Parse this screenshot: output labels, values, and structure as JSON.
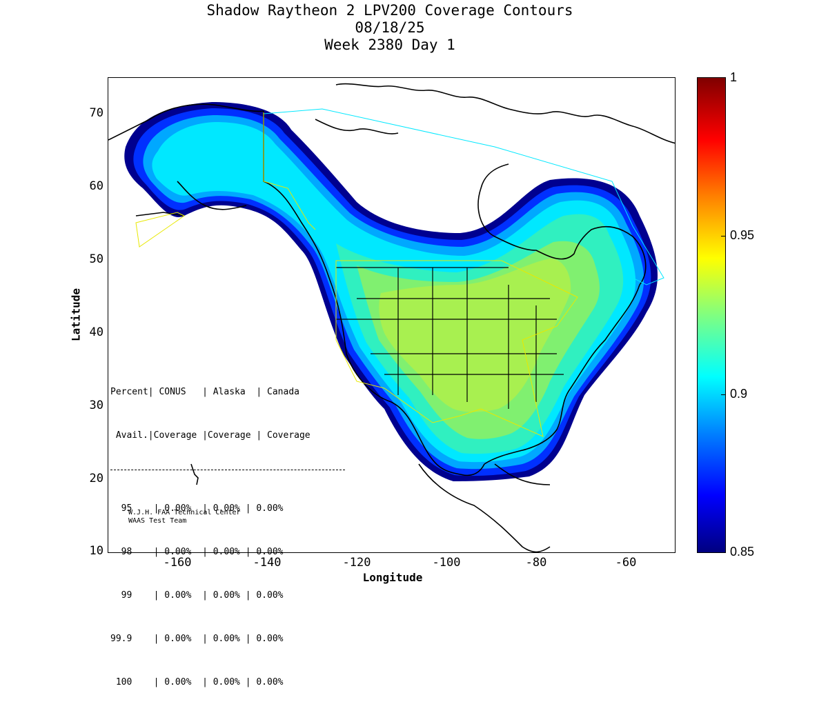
{
  "title": {
    "line1": "Shadow Raytheon 2 LPV200 Coverage Contours",
    "line2": "08/18/25",
    "line3": "Week 2380 Day 1"
  },
  "axes": {
    "xlabel": "Longitude",
    "ylabel": "Latitude",
    "xticks": [
      "-160",
      "-140",
      "-120",
      "-100",
      "-80",
      "-60"
    ],
    "yticks": [
      "10",
      "20",
      "30",
      "40",
      "50",
      "60",
      "70"
    ]
  },
  "colorbar": {
    "ticks": [
      "1",
      "0.95",
      "0.9",
      "0.85"
    ]
  },
  "stats_table": {
    "header1": [
      "Percent|",
      "CONUS",
      "| Alaska",
      "| Canada"
    ],
    "header2": [
      "Avail.|",
      "Coverage",
      "|Coverage",
      "| Coverage"
    ],
    "rows": [
      {
        "percent": "95",
        "conus": "0.00%",
        "alaska": "0.00%",
        "canada": "0.00%"
      },
      {
        "percent": "98",
        "conus": "0.00%",
        "alaska": "0.00%",
        "canada": "0.00%"
      },
      {
        "percent": "99",
        "conus": "0.00%",
        "alaska": "0.00%",
        "canada": "0.00%"
      },
      {
        "percent": "99.9",
        "conus": "0.00%",
        "alaska": "0.00%",
        "canada": "0.00%"
      },
      {
        "percent": "100",
        "conus": "0.00%",
        "alaska": "0.00%",
        "canada": "0.00%"
      }
    ]
  },
  "credit": {
    "line1": "W.J.H. FAA Technical Center",
    "line2": "WAAS Test Team"
  },
  "colors": {
    "dark_blue": "#00008f",
    "blue": "#0030ff",
    "light_blue": "#00a8ff",
    "cyan": "#00e8ff",
    "teal": "#30f0c0",
    "green": "#80f070",
    "yellow_green": "#a8f050"
  }
}
